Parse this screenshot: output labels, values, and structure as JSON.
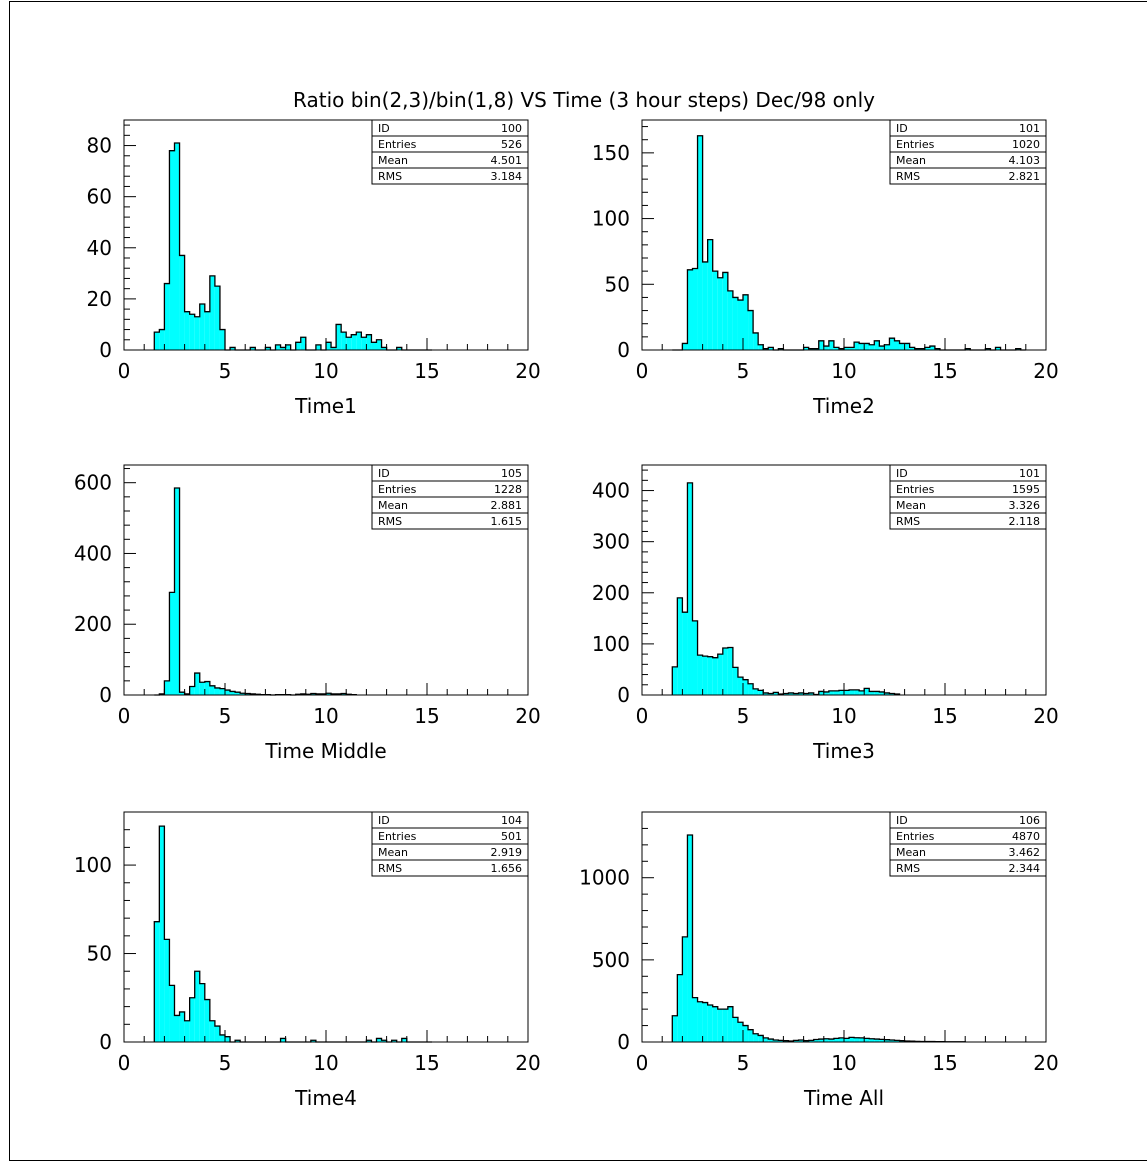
{
  "title": "Ratio bin(2,3)/bin(1,8) VS Time (3 hour steps)  Dec/98 only",
  "colors": {
    "fill": "#00ffff",
    "line": "#000000"
  },
  "chart_data": [
    {
      "type": "bar",
      "xlabel": "Time1",
      "xlim": [
        0,
        20
      ],
      "ylim": [
        0,
        90
      ],
      "yticks": [
        0,
        20,
        40,
        60,
        80
      ],
      "stats": {
        "id": "100",
        "entries": "526",
        "mean": "4.501",
        "rms": "3.184"
      },
      "bin_start": 1.5,
      "bin_width": 0.25,
      "values": [
        7,
        8,
        26,
        78,
        81,
        37,
        15,
        14,
        13,
        18,
        15,
        29,
        25,
        8,
        0,
        1,
        0,
        0,
        0,
        1,
        0,
        0,
        1,
        0,
        2,
        1,
        2,
        0,
        3,
        5,
        0,
        0,
        2,
        0,
        3,
        1,
        10,
        7,
        5,
        6,
        7,
        5,
        6,
        3,
        4,
        1,
        0,
        0,
        1,
        0,
        0,
        0,
        0,
        0,
        0
      ]
    },
    {
      "type": "bar",
      "xlabel": "Time2",
      "xlim": [
        0,
        20
      ],
      "ylim": [
        0,
        175
      ],
      "yticks": [
        0,
        50,
        100,
        150
      ],
      "stats": {
        "id": "101",
        "entries": "1020",
        "mean": "4.103",
        "rms": "2.821"
      },
      "bin_start": 1.5,
      "bin_width": 0.25,
      "values": [
        0,
        0,
        5,
        61,
        62,
        163,
        67,
        84,
        60,
        55,
        59,
        45,
        40,
        38,
        42,
        30,
        13,
        4,
        1,
        2,
        0,
        1,
        0,
        0,
        0,
        0,
        2,
        1,
        1,
        7,
        3,
        7,
        2,
        1,
        2,
        2,
        6,
        5,
        5,
        4,
        7,
        3,
        4,
        9,
        7,
        5,
        5,
        2,
        1,
        1,
        2,
        3,
        1,
        0,
        0,
        0,
        0,
        0,
        1,
        0,
        0,
        0,
        1,
        0,
        2,
        0,
        0,
        0,
        1,
        0
      ]
    },
    {
      "type": "bar",
      "xlabel": "Time Middle",
      "xlim": [
        0,
        20
      ],
      "ylim": [
        0,
        650
      ],
      "yticks": [
        0,
        200,
        400,
        600
      ],
      "stats": {
        "id": "105",
        "entries": "1228",
        "mean": "2.881",
        "rms": "1.615"
      },
      "bin_start": 1.5,
      "bin_width": 0.25,
      "values": [
        0,
        3,
        40,
        290,
        585,
        8,
        3,
        24,
        62,
        36,
        38,
        26,
        20,
        18,
        14,
        10,
        8,
        5,
        4,
        3,
        2,
        1,
        1,
        0,
        1,
        1,
        1,
        0,
        2,
        3,
        2,
        4,
        3,
        3,
        5,
        3,
        3,
        4,
        2,
        1
      ]
    },
    {
      "type": "bar",
      "xlabel": "Time3",
      "xlim": [
        0,
        20
      ],
      "ylim": [
        0,
        450
      ],
      "yticks": [
        0,
        100,
        200,
        300,
        400
      ],
      "stats": {
        "id": "101",
        "entries": "1595",
        "mean": "3.326",
        "rms": "2.118"
      },
      "bin_start": 1.5,
      "bin_width": 0.25,
      "values": [
        55,
        190,
        162,
        415,
        145,
        78,
        76,
        75,
        73,
        80,
        92,
        93,
        54,
        35,
        30,
        22,
        12,
        9,
        4,
        3,
        5,
        2,
        3,
        4,
        3,
        4,
        3,
        4,
        1,
        7,
        6,
        8,
        8,
        9,
        9,
        10,
        10,
        8,
        13,
        7,
        7,
        6,
        4,
        3,
        2
      ]
    },
    {
      "type": "bar",
      "xlabel": "Time4",
      "xlim": [
        0,
        20
      ],
      "ylim": [
        0,
        130
      ],
      "yticks": [
        0,
        50,
        100
      ],
      "stats": {
        "id": "104",
        "entries": "501",
        "mean": "2.919",
        "rms": "1.656"
      },
      "bin_start": 1.5,
      "bin_width": 0.25,
      "values": [
        68,
        122,
        58,
        32,
        15,
        17,
        12,
        25,
        40,
        33,
        24,
        12,
        9,
        4,
        3,
        0,
        1,
        0,
        0,
        0,
        0,
        0,
        0,
        0,
        0,
        2,
        0,
        0,
        0,
        0,
        0,
        1,
        0,
        0,
        0,
        0,
        0,
        0,
        0,
        0,
        0,
        0,
        1,
        0,
        2,
        1,
        0,
        1,
        0,
        2,
        0,
        0,
        0,
        0,
        0
      ]
    },
    {
      "type": "bar",
      "xlabel": "Time All",
      "xlim": [
        0,
        20
      ],
      "ylim": [
        0,
        1400
      ],
      "yticks": [
        0,
        500,
        1000
      ],
      "stats": {
        "id": "106",
        "entries": "4870",
        "mean": "3.462",
        "rms": "2.344"
      },
      "bin_start": 1.5,
      "bin_width": 0.25,
      "values": [
        160,
        410,
        640,
        1260,
        270,
        245,
        240,
        225,
        215,
        200,
        200,
        215,
        150,
        120,
        100,
        75,
        50,
        40,
        25,
        18,
        12,
        10,
        8,
        6,
        10,
        12,
        8,
        10,
        15,
        18,
        20,
        18,
        22,
        25,
        22,
        28,
        26,
        25,
        22,
        20,
        18,
        16,
        14,
        12,
        10,
        8,
        6,
        5,
        4,
        3,
        3,
        3,
        2,
        2,
        1,
        1,
        1,
        1
      ]
    }
  ]
}
